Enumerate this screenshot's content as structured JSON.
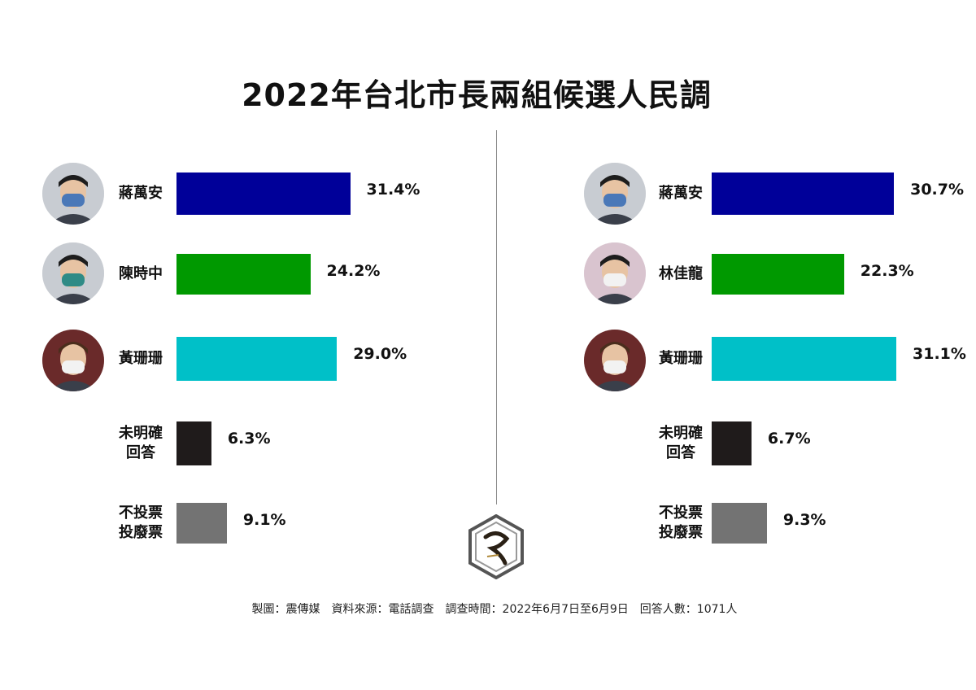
{
  "title": "2022年台北市長兩組候選人民調",
  "footer": "製圖：震傳媒　資料來源：電話調查　調查時間：2022年6月7日至6月9日　回答人數：1071人",
  "chart_data": [
    {
      "type": "bar",
      "orientation": "horizontal",
      "categories": [
        "蔣萬安",
        "陳時中",
        "黃珊珊",
        "未明確\n回答",
        "不投票\n投廢票"
      ],
      "values": [
        31.4,
        24.2,
        29.0,
        6.3,
        9.1
      ],
      "value_labels": [
        "31.4%",
        "24.2%",
        "29.0%",
        "6.3%",
        "9.1%"
      ],
      "colors": [
        "#000099",
        "#009900",
        "#00c0c8",
        "#1f1b1b",
        "#737373"
      ],
      "portraits": [
        "face-mask-icon",
        "face-mask-icon",
        "face-mask-icon",
        null,
        null
      ],
      "xlim": [
        0,
        35
      ]
    },
    {
      "type": "bar",
      "orientation": "horizontal",
      "categories": [
        "蔣萬安",
        "林佳龍",
        "黃珊珊",
        "未明確\n回答",
        "不投票\n投廢票"
      ],
      "values": [
        30.7,
        22.3,
        31.1,
        6.7,
        9.3
      ],
      "value_labels": [
        "30.7%",
        "22.3%",
        "31.1%",
        "6.7%",
        "9.3%"
      ],
      "colors": [
        "#000099",
        "#009900",
        "#00c0c8",
        "#1f1b1b",
        "#737373"
      ],
      "portraits": [
        "face-mask-icon",
        "face-mask-icon",
        "face-mask-icon",
        null,
        null
      ],
      "xlim": [
        0,
        35
      ]
    }
  ],
  "logo": {
    "icon": "zhen-media-logo-icon",
    "text": "震傳媒"
  }
}
